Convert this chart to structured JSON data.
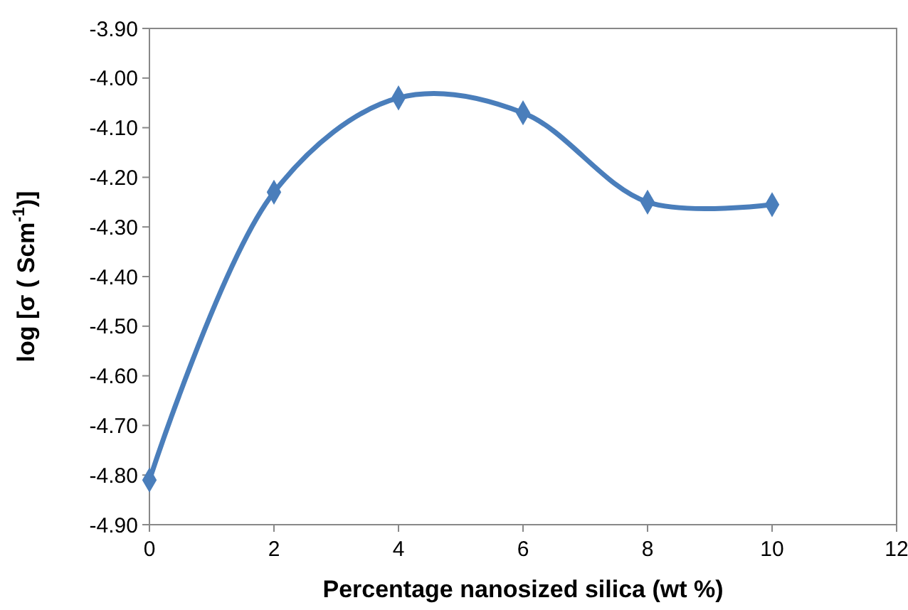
{
  "chart_data": {
    "type": "line",
    "xlabel": "Percentage nanosized silica (wt %)",
    "ylabel": "log [σ ( Scm$^{-1}$)]",
    "x": [
      0,
      2,
      4,
      6,
      8,
      10
    ],
    "series": [
      {
        "color": "#4a7ebb",
        "values": [
          -4.81,
          -4.23,
          -4.04,
          -4.07,
          -4.25,
          -4.255
        ]
      }
    ],
    "xlim": [
      0,
      12
    ],
    "xticks": [
      0,
      2,
      4,
      6,
      8,
      10,
      12
    ],
    "ylim": [
      -4.9,
      -3.9
    ],
    "yticks": [
      {
        "value": -4.9,
        "label": "-4.90"
      },
      {
        "value": -4.8,
        "label": "-4.80"
      },
      {
        "value": -4.7,
        "label": "-4.70"
      },
      {
        "value": -4.6,
        "label": "-4.60"
      },
      {
        "value": -4.5,
        "label": "-4.50"
      },
      {
        "value": -4.4,
        "label": "-4.40"
      },
      {
        "value": -4.3,
        "label": "-4.30"
      },
      {
        "value": -4.2,
        "label": "-4.20"
      },
      {
        "value": -4.1,
        "label": "-4.10"
      },
      {
        "value": -4.0,
        "label": "-4.00"
      },
      {
        "value": -3.9,
        "label": "-3.90"
      }
    ],
    "grid": false,
    "marker": "diamond",
    "line_style": "solid"
  }
}
